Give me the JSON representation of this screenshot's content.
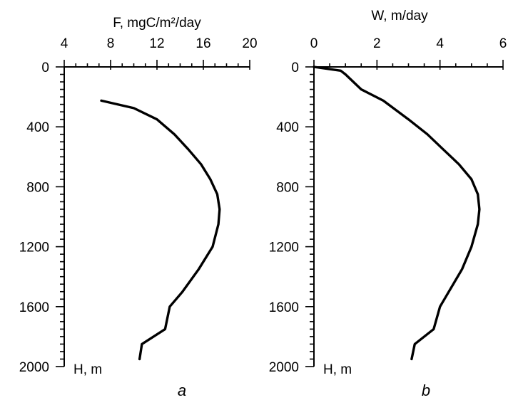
{
  "chart_data": [
    {
      "type": "line",
      "panel_label": "a",
      "xlabel": "F, mgC/m²/day",
      "ylabel": "H, m",
      "xlim": [
        4,
        20
      ],
      "x_ticks": [
        "4",
        "8",
        "12",
        "16",
        "20"
      ],
      "ylim": [
        0,
        2000
      ],
      "y_ticks": [
        "0",
        "400",
        "800",
        "1200",
        "1600",
        "2000"
      ],
      "y_inverted": true,
      "series": [
        {
          "name": "F",
          "x": [
            7.2,
            10.0,
            12.0,
            13.5,
            14.7,
            15.8,
            16.6,
            17.2,
            17.4,
            17.3,
            16.8,
            15.6,
            14.2,
            13.1,
            12.7,
            10.7,
            10.5
          ],
          "y": [
            225,
            275,
            350,
            450,
            550,
            650,
            750,
            850,
            950,
            1050,
            1200,
            1350,
            1500,
            1600,
            1750,
            1850,
            1950
          ]
        }
      ]
    },
    {
      "type": "line",
      "panel_label": "b",
      "xlabel": "W, m/day",
      "ylabel": "H, m",
      "xlim": [
        0,
        6
      ],
      "x_ticks": [
        "0",
        "2",
        "4",
        "6"
      ],
      "ylim": [
        0,
        2000
      ],
      "y_ticks": [
        "0",
        "400",
        "800",
        "1200",
        "1600",
        "2000"
      ],
      "y_inverted": true,
      "series": [
        {
          "name": "W",
          "x": [
            0.0,
            0.85,
            1.0,
            1.5,
            2.2,
            3.0,
            3.6,
            4.1,
            4.6,
            5.0,
            5.2,
            5.25,
            5.2,
            5.0,
            4.7,
            4.0,
            3.8,
            3.2,
            3.1
          ],
          "y": [
            0,
            25,
            50,
            150,
            225,
            350,
            450,
            550,
            650,
            750,
            850,
            950,
            1050,
            1200,
            1350,
            1600,
            1750,
            1850,
            1950
          ]
        }
      ]
    }
  ]
}
